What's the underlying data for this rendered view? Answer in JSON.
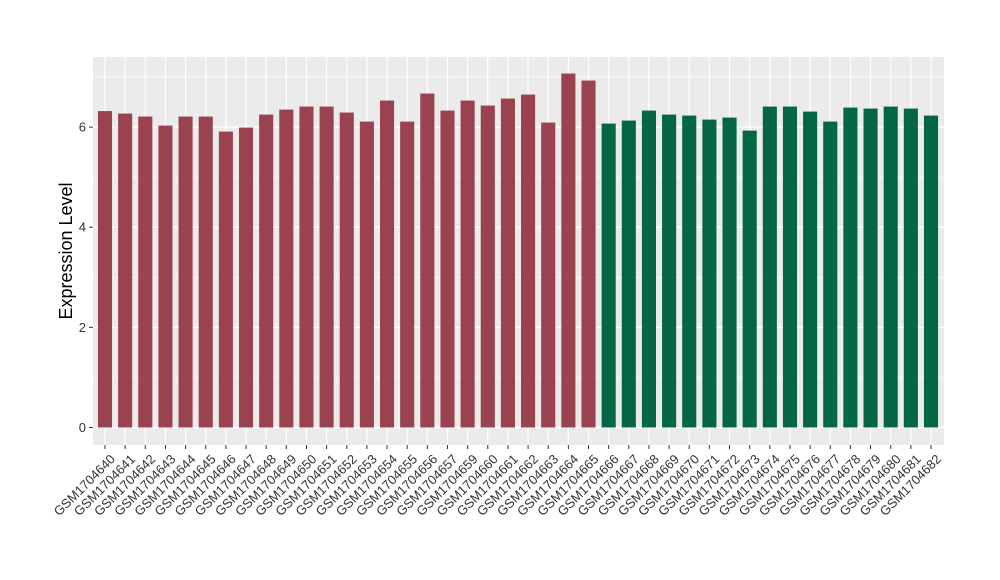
{
  "chart_data": {
    "type": "bar",
    "title": "",
    "xlabel": "",
    "ylabel": "Expression Level",
    "ylim": [
      -0.35,
      7.4
    ],
    "yticks": [
      0,
      2,
      4,
      6
    ],
    "grid": true,
    "categories": [
      "GSM1704640",
      "GSM1704641",
      "GSM1704642",
      "GSM1704643",
      "GSM1704644",
      "GSM1704645",
      "GSM1704646",
      "GSM1704647",
      "GSM1704648",
      "GSM1704649",
      "GSM1704650",
      "GSM1704651",
      "GSM1704652",
      "GSM1704653",
      "GSM1704654",
      "GSM1704655",
      "GSM1704656",
      "GSM1704657",
      "GSM1704659",
      "GSM1704660",
      "GSM1704661",
      "GSM1704662",
      "GSM1704663",
      "GSM1704664",
      "GSM1704665",
      "GSM1704666",
      "GSM1704667",
      "GSM1704668",
      "GSM1704669",
      "GSM1704670",
      "GSM1704671",
      "GSM1704672",
      "GSM1704673",
      "GSM1704674",
      "GSM1704675",
      "GSM1704676",
      "GSM1704677",
      "GSM1704678",
      "GSM1704679",
      "GSM1704680",
      "GSM1704681",
      "GSM1704682"
    ],
    "values": [
      6.32,
      6.27,
      6.21,
      6.03,
      6.21,
      6.21,
      5.91,
      5.99,
      6.25,
      6.35,
      6.41,
      6.41,
      6.29,
      6.11,
      6.53,
      6.11,
      6.67,
      6.33,
      6.53,
      6.43,
      6.57,
      6.65,
      6.09,
      7.07,
      6.93,
      6.07,
      6.13,
      6.33,
      6.25,
      6.23,
      6.15,
      6.19,
      5.93,
      6.41,
      6.41,
      6.31,
      6.11,
      6.39,
      6.37,
      6.41,
      6.37,
      6.23
    ],
    "groups": [
      {
        "start": 0,
        "end": 24,
        "color": "#9b4250"
      },
      {
        "start": 25,
        "end": 41,
        "color": "#046646"
      }
    ],
    "colors": {
      "panel_background": "#ebebeb",
      "grid": "#ffffff",
      "tick": "#333333"
    }
  }
}
